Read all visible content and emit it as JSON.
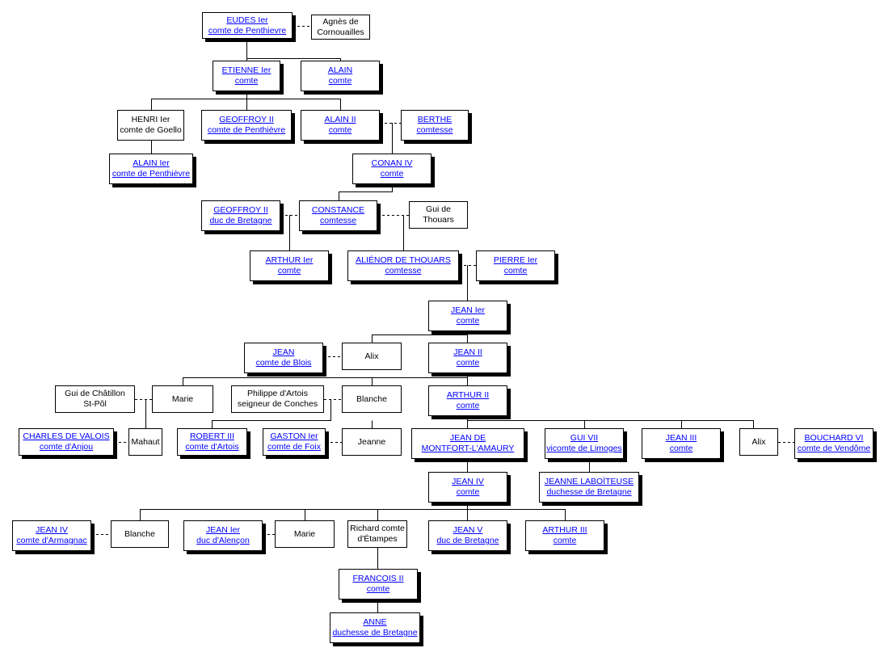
{
  "colors": {
    "link": "#0000ff",
    "border": "#000000",
    "shadow": "#000000",
    "background": "#ffffff"
  },
  "nodes": [
    {
      "line1": "EUDES Ier",
      "line2": "comte de Penthievre",
      "link": true
    },
    {
      "line1": "Agnès de",
      "line2": "Cornouailles",
      "link": false
    },
    {
      "line1": "ETIENNE Ier",
      "line2": "comte",
      "link": true
    },
    {
      "line1": "ALAIN",
      "line2": "comte",
      "link": true
    },
    {
      "line1": "HENRI Ier",
      "line2": "comte de Goello",
      "link": false
    },
    {
      "line1": "GEOFFROY II",
      "line2": "comte de Penthièvre",
      "link": true
    },
    {
      "line1": "ALAIN II",
      "line2": "comte",
      "link": true
    },
    {
      "line1": "BERTHE",
      "line2": "comtesse",
      "link": true
    },
    {
      "line1": "ALAIN Ier",
      "line2": "comte de Penthièvre",
      "link": true
    },
    {
      "line1": "CONAN IV",
      "line2": "comte",
      "link": true
    },
    {
      "line1": "GEOFFROY II",
      "line2": "duc de Bretagne",
      "link": true
    },
    {
      "line1": "CONSTANCE",
      "line2": "comtesse",
      "link": true
    },
    {
      "line1": "Gui de",
      "line2": "Thouars",
      "link": false
    },
    {
      "line1": "ARTHUR Ier",
      "line2": "comte",
      "link": true
    },
    {
      "line1": "ALIÉNOR DE THOUARS",
      "line2": "comtesse",
      "link": true
    },
    {
      "line1": "PIERRE Ier",
      "line2": "comte",
      "link": true
    },
    {
      "line1": "JEAN Ier",
      "line2": "comte",
      "link": true
    },
    {
      "line1": "JEAN",
      "line2": "comte de Blois",
      "link": true
    },
    {
      "line1": "Alix",
      "line2": "",
      "link": false
    },
    {
      "line1": "JEAN II",
      "line2": "comte",
      "link": true
    },
    {
      "line1": "Gui de Châtillon",
      "line2": "St-Pôl",
      "link": false
    },
    {
      "line1": "Marie",
      "line2": "",
      "link": false
    },
    {
      "line1": "Philippe d'Artois",
      "line2": "seigneur de Conches",
      "link": false
    },
    {
      "line1": "Blanche",
      "line2": "",
      "link": false
    },
    {
      "line1": "ARTHUR II",
      "line2": "comte",
      "link": true
    },
    {
      "line1": "CHARLES DE VALOIS",
      "line2": "comte d'Anjou",
      "link": true
    },
    {
      "line1": "Mahaut",
      "line2": "",
      "link": false
    },
    {
      "line1": "ROBERT III",
      "line2": "comte d'Artois",
      "link": true
    },
    {
      "line1": "GASTON Ier",
      "line2": "comte de Foix",
      "link": true
    },
    {
      "line1": "Jeanne",
      "line2": "",
      "link": false
    },
    {
      "line1": "JEAN DE",
      "line2": "MONTFORT-L'AMAURY",
      "link": true
    },
    {
      "line1": "GUI VII",
      "line2": "vicomte de Limoges",
      "link": true
    },
    {
      "line1": "JEAN III",
      "line2": "comte",
      "link": true
    },
    {
      "line1": "Alix",
      "line2": "",
      "link": false
    },
    {
      "line1": "BOUCHARD VI",
      "line2": "comte de Vendôme",
      "link": true
    },
    {
      "line1": "JEAN IV",
      "line2": "comte",
      "link": true
    },
    {
      "line1": "JEANNE LABOÏTEUSE",
      "line2": "duchesse de Bretagne",
      "link": true
    },
    {
      "line1": "JEAN IV",
      "line2": "comte d'Armagnac",
      "link": true
    },
    {
      "line1": "Blanche",
      "line2": "",
      "link": false
    },
    {
      "line1": "JEAN Ier",
      "line2": "duc d'Alençon",
      "link": true
    },
    {
      "line1": "Marie",
      "line2": "",
      "link": false
    },
    {
      "line1": "Richard comte",
      "line2": "d'Étampes",
      "link": false
    },
    {
      "line1": "JEAN V",
      "line2": "duc de Bretagne",
      "link": true
    },
    {
      "line1": "ARTHUR III",
      "line2": "comte",
      "link": true
    },
    {
      "line1": "FRANCOIS II",
      "line2": "comte",
      "link": true
    },
    {
      "line1": "ANNE",
      "line2": "duchesse de Bretagne",
      "link": true
    }
  ]
}
